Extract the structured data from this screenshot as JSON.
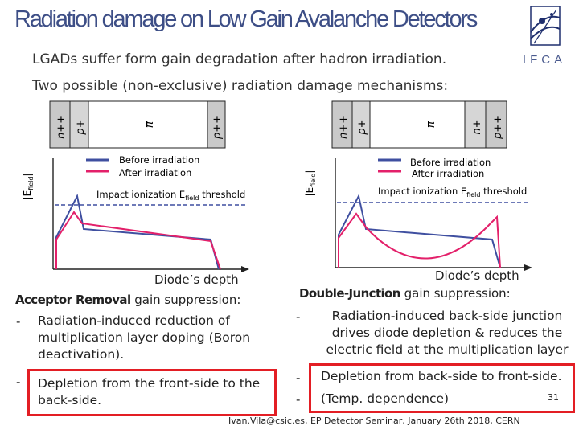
{
  "slide": {
    "title": "Radiation damage on Low Gain Avalanche Detectors",
    "subtitle1": "LGADs suffer form gain degradation after hadron irradiation.",
    "subtitle2": "Two possible  (non-exclusive) radiation damage mechanisms:",
    "logo_text": "IFCA",
    "footer": "Ivan.Vila@csic.es, EP Detector Seminar, January 26th 2018, CERN",
    "page_number": "31"
  },
  "left_diagram": {
    "layers": [
      "n++",
      "p+",
      "π",
      "p++"
    ],
    "axis_label": "|E",
    "axis_sub": "field",
    "legend_before": "Before irradiation",
    "legend_after": "After irradiation",
    "threshold_prefix": "Impact ionization E",
    "threshold_sub": "field",
    "threshold_suffix": " threshold",
    "xlabel": "Diode’s depth"
  },
  "right_diagram": {
    "layers": [
      "n++",
      "p+",
      "π",
      "n+",
      "p++"
    ],
    "axis_label": "|E",
    "axis_sub": "field",
    "legend_before": "Before irradiation",
    "legend_after": "After irradiation",
    "threshold_prefix": "Impact ionization E",
    "threshold_sub": "field",
    "threshold_suffix": " threshold",
    "xlabel": "Diode’s depth"
  },
  "colors": {
    "title": "#3d4e86",
    "before_curve": "#3f4fa0",
    "after_curve": "#e3206a",
    "highlight_box": "#e31e24"
  },
  "left_text": {
    "heading_bold": "Acceptor Removal",
    "heading_rest": " gain suppression:",
    "bullet1": "Radiation-induced reduction of multiplication layer doping (Boron deactivation).",
    "bullet2": "Depletion from the front-side to the back-side."
  },
  "right_text": {
    "heading_bold": "Double-Junction",
    "heading_rest": " gain suppression:",
    "bullet1": "Radiation-induced back-side junction drives diode depletion & reduces the electric field at the multiplication layer",
    "bullet2": "Depletion from back-side to front-side.",
    "bullet3": "(Temp. dependence)"
  }
}
